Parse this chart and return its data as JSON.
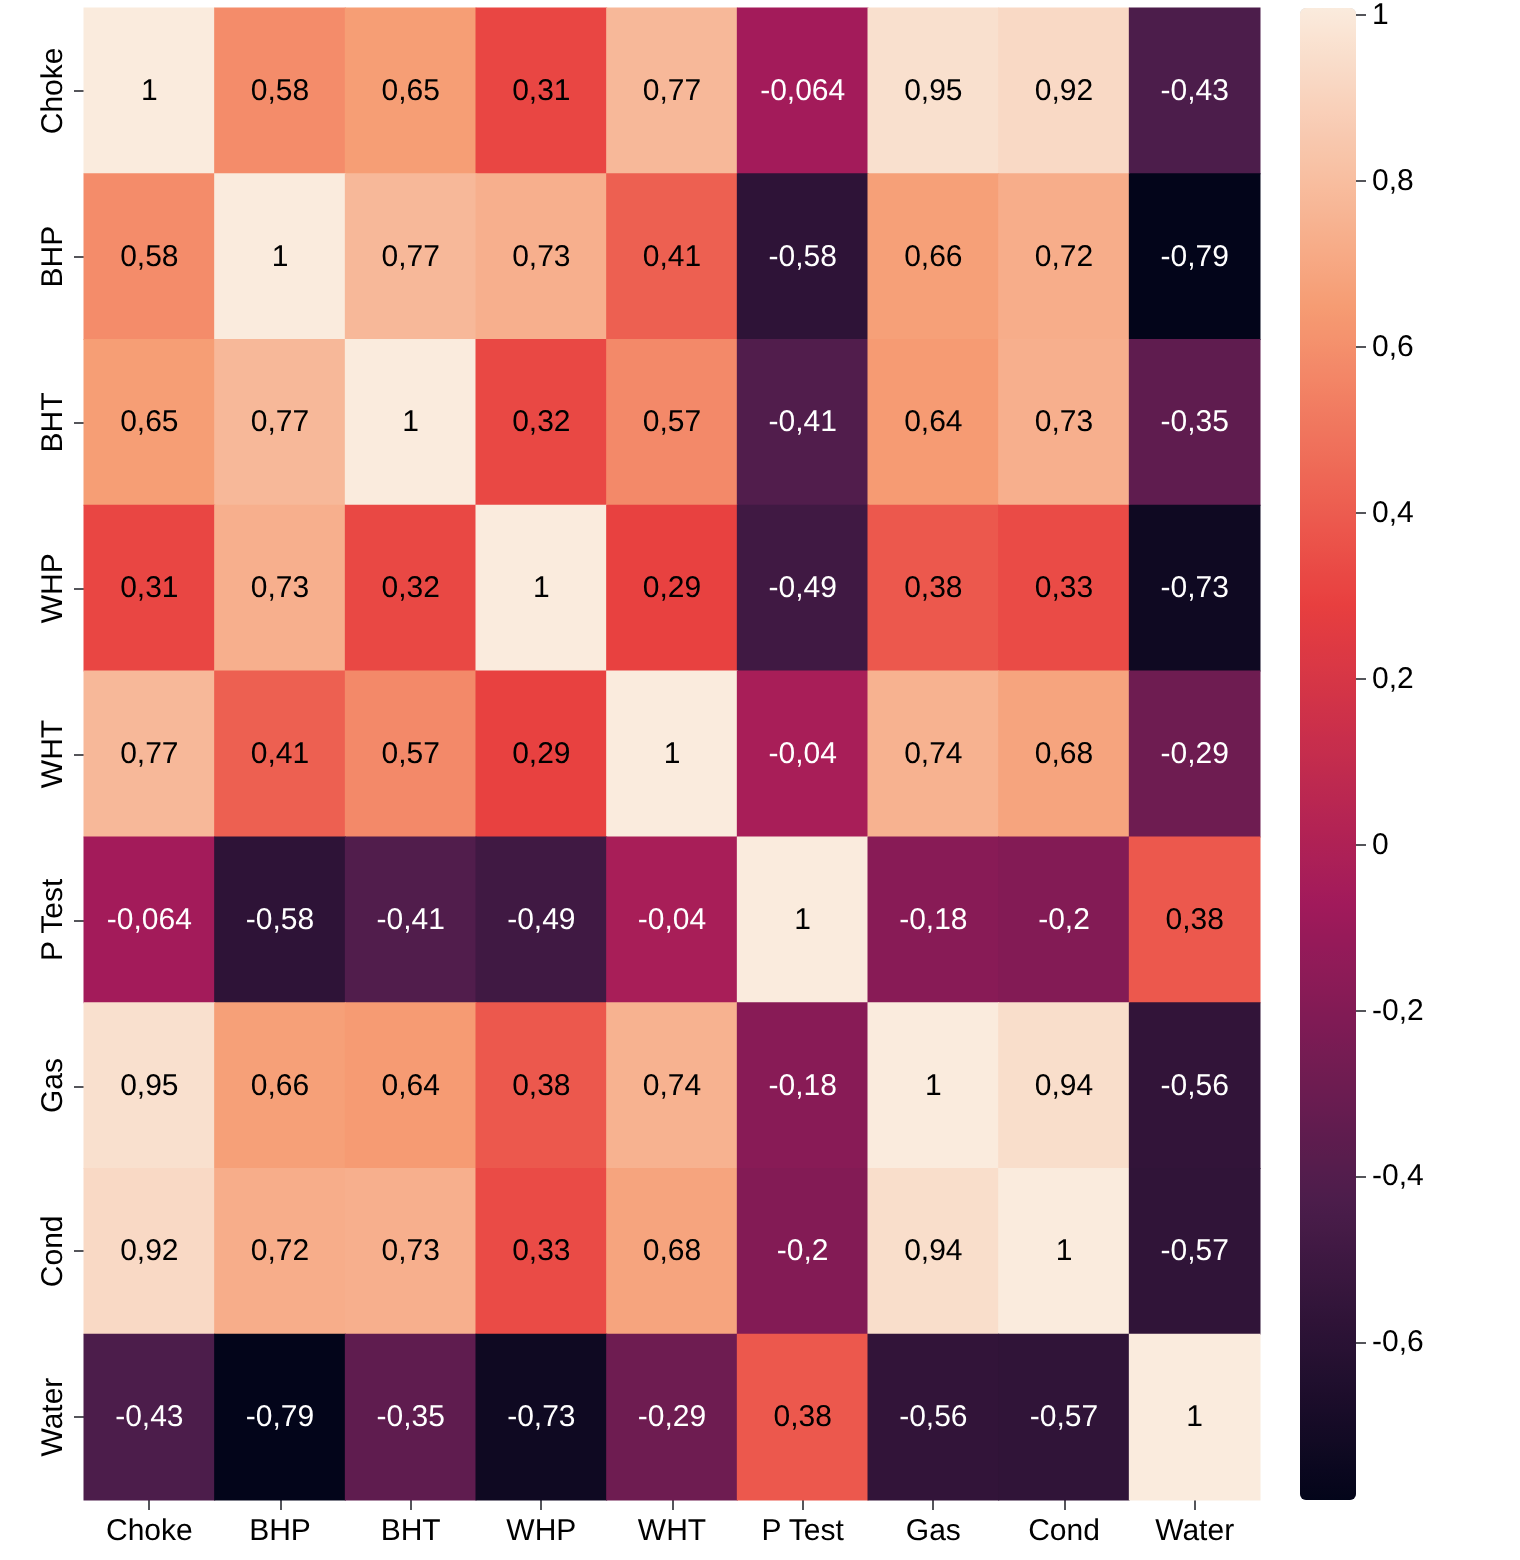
{
  "chart_data": {
    "type": "heatmap",
    "categories": [
      "Choke",
      "BHP",
      "BHT",
      "WHP",
      "WHT",
      "P Test",
      "Gas",
      "Cond",
      "Water"
    ],
    "y_categories": [
      "Choke",
      "BHP",
      "BHT",
      "WHP",
      "WHT",
      "P Test",
      "Gas",
      "Cond",
      "Water"
    ],
    "cells": [
      [
        1,
        0.58,
        0.65,
        0.31,
        0.77,
        -0.064,
        0.95,
        0.92,
        -0.43
      ],
      [
        0.58,
        1,
        0.77,
        0.73,
        0.41,
        -0.58,
        0.66,
        0.72,
        -0.79
      ],
      [
        0.65,
        0.77,
        1,
        0.32,
        0.57,
        -0.41,
        0.64,
        0.73,
        -0.35
      ],
      [
        0.31,
        0.73,
        0.32,
        1,
        0.29,
        -0.49,
        0.38,
        0.33,
        -0.73
      ],
      [
        0.77,
        0.41,
        0.57,
        0.29,
        1,
        -0.04,
        0.74,
        0.68,
        -0.29
      ],
      [
        -0.064,
        -0.58,
        -0.41,
        -0.49,
        -0.04,
        1,
        -0.18,
        -0.2,
        0.38
      ],
      [
        0.95,
        0.66,
        0.64,
        0.38,
        0.74,
        -0.18,
        1,
        0.94,
        -0.56
      ],
      [
        0.92,
        0.72,
        0.73,
        0.33,
        0.68,
        -0.2,
        0.94,
        1,
        -0.57
      ],
      [
        -0.43,
        -0.79,
        -0.35,
        -0.73,
        -0.29,
        0.38,
        -0.56,
        -0.57,
        1
      ]
    ],
    "cell_labels": [
      [
        "1",
        "0,58",
        "0,65",
        "0,31",
        "0,77",
        "-0,064",
        "0,95",
        "0,92",
        "-0,43"
      ],
      [
        "0,58",
        "1",
        "0,77",
        "0,73",
        "0,41",
        "-0,58",
        "0,66",
        "0,72",
        "-0,79"
      ],
      [
        "0,65",
        "0,77",
        "1",
        "0,32",
        "0,57",
        "-0,41",
        "0,64",
        "0,73",
        "-0,35"
      ],
      [
        "0,31",
        "0,73",
        "0,32",
        "1",
        "0,29",
        "-0,49",
        "0,38",
        "0,33",
        "-0,73"
      ],
      [
        "0,77",
        "0,41",
        "0,57",
        "0,29",
        "1",
        "-0,04",
        "0,74",
        "0,68",
        "-0,29"
      ],
      [
        "-0,064",
        "-0,58",
        "-0,41",
        "-0,49",
        "-0,04",
        "1",
        "-0,18",
        "-0,2",
        "0,38"
      ],
      [
        "0,95",
        "0,66",
        "0,64",
        "0,38",
        "0,74",
        "-0,18",
        "1",
        "0,94",
        "-0,56"
      ],
      [
        "0,92",
        "0,72",
        "0,73",
        "0,33",
        "0,68",
        "-0,2",
        "0,94",
        "1",
        "-0,57"
      ],
      [
        "-0,43",
        "-0,79",
        "-0,35",
        "-0,73",
        "-0,29",
        "0,38",
        "-0,56",
        "-0,57",
        "1"
      ]
    ],
    "clim": [
      -0.79,
      1
    ],
    "cticks": [
      {
        "value": -0.6,
        "label": "-0,6"
      },
      {
        "value": -0.4,
        "label": "-0,4"
      },
      {
        "value": -0.2,
        "label": "-0,2"
      },
      {
        "value": 0,
        "label": "0"
      },
      {
        "value": 0.2,
        "label": "0,2"
      },
      {
        "value": 0.4,
        "label": "0,4"
      },
      {
        "value": 0.6,
        "label": "0,6"
      },
      {
        "value": 0.8,
        "label": "0,8"
      },
      {
        "value": 1,
        "label": "1"
      }
    ]
  }
}
